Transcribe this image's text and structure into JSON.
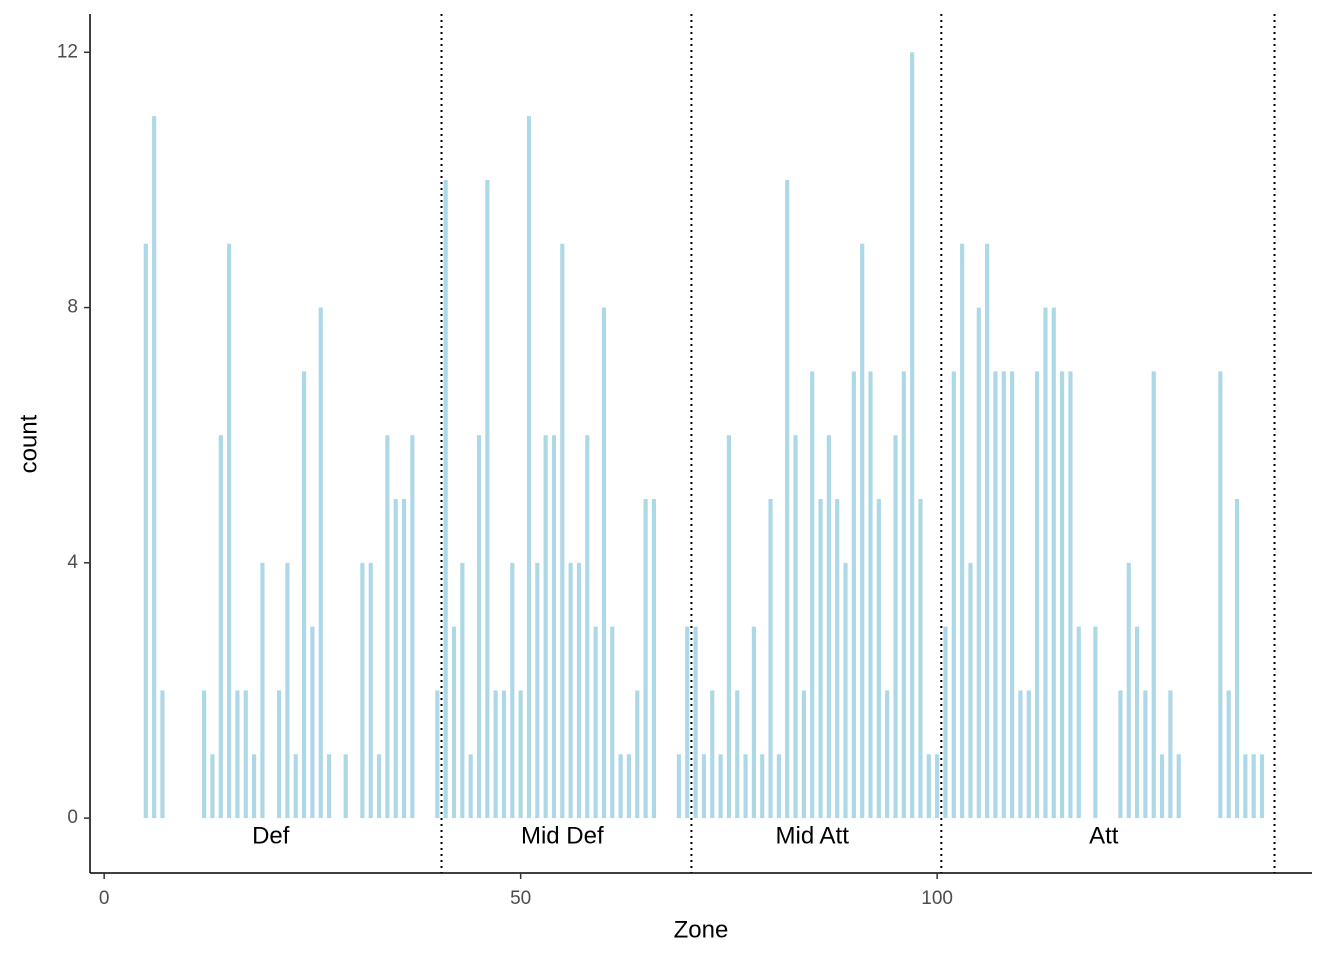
{
  "chart_data": {
    "type": "bar",
    "x_label": "Zone",
    "y_label": "count",
    "color": "#add8e6",
    "bar_width": 0.5,
    "x": [
      5,
      6,
      7,
      12,
      13,
      14,
      15,
      16,
      17,
      18,
      19,
      21,
      22,
      23,
      24,
      25,
      26,
      27,
      29,
      31,
      32,
      33,
      34,
      35,
      36,
      37,
      40,
      41,
      42,
      43,
      44,
      45,
      46,
      47,
      48,
      49,
      50,
      51,
      52,
      53,
      54,
      55,
      56,
      57,
      58,
      59,
      60,
      61,
      62,
      63,
      64,
      65,
      66,
      69,
      70,
      71,
      72,
      73,
      74,
      75,
      76,
      77,
      78,
      79,
      80,
      81,
      82,
      83,
      84,
      85,
      86,
      87,
      88,
      89,
      90,
      91,
      92,
      93,
      94,
      95,
      96,
      97,
      98,
      99,
      100,
      101,
      102,
      103,
      104,
      105,
      106,
      107,
      108,
      109,
      110,
      111,
      112,
      113,
      114,
      115,
      116,
      117,
      119,
      122,
      123,
      124,
      125,
      126,
      127,
      128,
      129,
      134,
      135,
      136,
      137,
      138,
      139
    ],
    "values": [
      9,
      11,
      2,
      2,
      1,
      6,
      9,
      2,
      2,
      1,
      4,
      2,
      4,
      1,
      7,
      3,
      8,
      1,
      1,
      4,
      4,
      1,
      6,
      5,
      5,
      6,
      2,
      10,
      3,
      4,
      1,
      6,
      10,
      2,
      2,
      4,
      2,
      11,
      4,
      6,
      6,
      9,
      4,
      4,
      6,
      3,
      8,
      3,
      1,
      1,
      2,
      5,
      5,
      1,
      3,
      3,
      1,
      2,
      1,
      6,
      2,
      1,
      3,
      1,
      5,
      1,
      10,
      6,
      2,
      7,
      5,
      6,
      5,
      4,
      7,
      9,
      7,
      5,
      2,
      6,
      7,
      12,
      5,
      1,
      1,
      3,
      7,
      9,
      4,
      8,
      9,
      7,
      7,
      7,
      2,
      2,
      7,
      8,
      8,
      7,
      7,
      3,
      3,
      2,
      4,
      3,
      2,
      7,
      1,
      2,
      1,
      7,
      2,
      5,
      1,
      1,
      1
    ],
    "xlim": [
      -1.7,
      145
    ],
    "ylim": [
      -0.86,
      12.6
    ],
    "xticks": [
      0,
      50,
      100
    ],
    "yticks": [
      0,
      4,
      8,
      12
    ],
    "vlines": [
      40.5,
      70.5,
      100.5,
      140.5
    ],
    "annotations": [
      {
        "text": "Def",
        "x": 20,
        "y": -0.3
      },
      {
        "text": "Mid Def",
        "x": 55,
        "y": -0.3
      },
      {
        "text": "Mid Att",
        "x": 85,
        "y": -0.3
      },
      {
        "text": "Att",
        "x": 120,
        "y": -0.3
      }
    ]
  }
}
